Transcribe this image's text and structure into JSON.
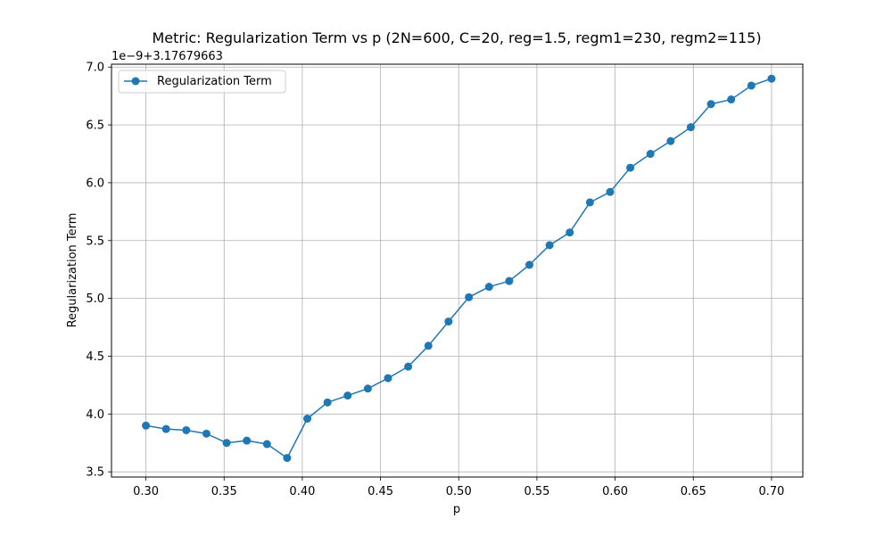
{
  "chart_data": {
    "type": "line",
    "title": "Metric: Regularization Term vs p (2N=600, C=20, reg=1.5, regm1=230, regm2=115)",
    "xlabel": "p",
    "ylabel": "Regularization Term",
    "y_offset_text": "1e−9+3.17679663",
    "xlim": [
      0.278,
      0.72
    ],
    "ylim": [
      3.455,
      7.025
    ],
    "xticks": [
      0.3,
      0.35,
      0.4,
      0.45,
      0.5,
      0.55,
      0.6,
      0.65,
      0.7
    ],
    "xtick_labels": [
      "0.30",
      "0.35",
      "0.40",
      "0.45",
      "0.50",
      "0.55",
      "0.60",
      "0.65",
      "0.70"
    ],
    "yticks": [
      3.5,
      4.0,
      4.5,
      5.0,
      5.5,
      6.0,
      6.5,
      7.0
    ],
    "ytick_labels": [
      "3.5",
      "4.0",
      "4.5",
      "5.0",
      "5.5",
      "6.0",
      "6.5",
      "7.0"
    ],
    "grid": true,
    "legend_position": "top-left",
    "series": [
      {
        "name": "Regularization Term",
        "color": "#1f77b4",
        "marker": "circle",
        "x": [
          0.3,
          0.3129,
          0.3258,
          0.3387,
          0.3516,
          0.3645,
          0.3774,
          0.3903,
          0.4032,
          0.4161,
          0.429,
          0.4419,
          0.4548,
          0.4677,
          0.4806,
          0.4935,
          0.5065,
          0.5194,
          0.5323,
          0.5452,
          0.5581,
          0.571,
          0.5839,
          0.5968,
          0.6097,
          0.6226,
          0.6355,
          0.6484,
          0.6613,
          0.6742,
          0.6871,
          0.7
        ],
        "y": [
          3.9,
          3.87,
          3.86,
          3.83,
          3.75,
          3.77,
          3.74,
          3.62,
          3.96,
          4.1,
          4.16,
          4.22,
          4.31,
          4.41,
          4.59,
          4.8,
          5.01,
          5.1,
          5.15,
          5.29,
          5.46,
          5.57,
          5.83,
          5.92,
          6.13,
          6.25,
          6.36,
          6.48,
          6.68,
          6.72,
          6.84,
          6.9
        ]
      }
    ]
  }
}
